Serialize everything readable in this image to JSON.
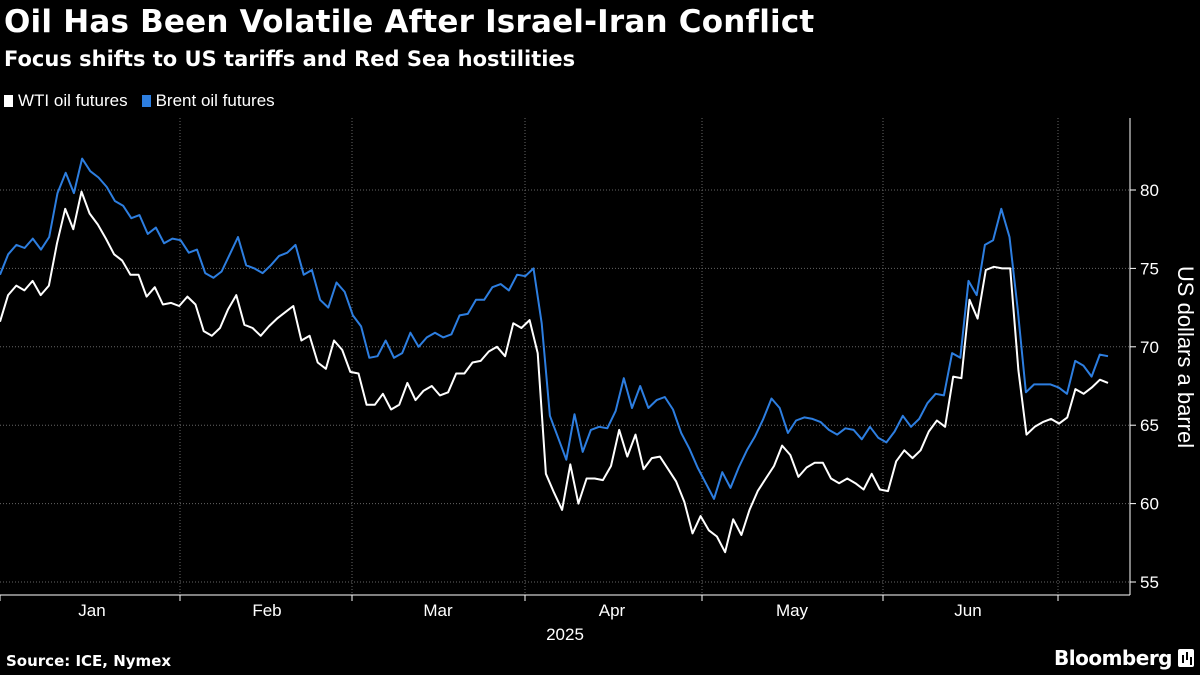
{
  "title": "Oil Has Been Volatile After Israel-Iran Conflict",
  "subtitle": "Focus shifts to US tariffs and Red Sea hostilities",
  "source": "Source: ICE, Nymex",
  "brand": "Bloomberg",
  "colors": {
    "background": "#000000",
    "wti": "#ffffff",
    "brent": "#2d7ee0",
    "grid": "#666666"
  },
  "chart_data": {
    "type": "line",
    "title": "Oil Has Been Volatile After Israel-Iran Conflict",
    "xlabel": "2025",
    "ylabel": "US dollars a barrel",
    "ylim": [
      55,
      84
    ],
    "yticks": [
      55,
      60,
      65,
      70,
      75,
      80
    ],
    "ytick_labels": [
      "55",
      "60",
      "65",
      "70",
      "75",
      "80"
    ],
    "month_labels": [
      "Jan",
      "Feb",
      "Mar",
      "Apr",
      "May",
      "Jun"
    ],
    "year_label": "2025",
    "legend_position": "top-left",
    "grid": true,
    "series": [
      {
        "name": "WTI oil futures",
        "color": "#ffffff",
        "values": [
          71.6,
          73.3,
          73.9,
          73.6,
          74.2,
          73.3,
          73.9,
          76.6,
          78.8,
          77.5,
          79.9,
          78.5,
          77.8,
          76.9,
          75.9,
          75.5,
          74.6,
          74.6,
          73.2,
          73.8,
          72.7,
          72.8,
          72.6,
          73.2,
          72.7,
          71.0,
          70.7,
          71.2,
          72.4,
          73.3,
          71.4,
          71.2,
          70.7,
          71.3,
          71.8,
          72.2,
          72.6,
          70.4,
          70.7,
          69.0,
          68.6,
          70.4,
          69.8,
          68.4,
          68.3,
          66.3,
          66.3,
          67.0,
          66.0,
          66.3,
          67.7,
          66.6,
          67.2,
          67.5,
          66.9,
          67.1,
          68.3,
          68.3,
          69.0,
          69.1,
          69.7,
          70.0,
          69.4,
          71.5,
          71.2,
          71.7,
          69.6,
          61.9,
          60.7,
          59.6,
          62.5,
          60.0,
          61.6,
          61.6,
          61.5,
          62.4,
          64.7,
          63.0,
          64.4,
          62.2,
          62.9,
          63.0,
          62.2,
          61.4,
          60.1,
          58.1,
          59.2,
          58.3,
          57.9,
          56.9,
          59.0,
          58.0,
          59.6,
          60.8,
          61.6,
          62.4,
          63.7,
          63.1,
          61.7,
          62.3,
          62.6,
          62.6,
          61.6,
          61.3,
          61.6,
          61.3,
          60.9,
          61.9,
          60.9,
          60.8,
          62.7,
          63.4,
          62.9,
          63.4,
          64.6,
          65.3,
          64.9,
          68.1,
          68.0,
          73.0,
          71.8,
          74.9,
          75.1,
          75.0,
          75.0,
          68.5,
          64.4,
          64.9,
          65.2,
          65.4,
          65.1,
          65.5,
          67.3,
          67.0,
          67.4,
          67.9,
          67.7
        ]
      },
      {
        "name": "Brent oil futures",
        "color": "#2d7ee0",
        "values": [
          74.6,
          75.9,
          76.5,
          76.3,
          76.9,
          76.2,
          77.0,
          79.8,
          81.1,
          79.8,
          82.0,
          81.2,
          80.8,
          80.2,
          79.3,
          79.0,
          78.2,
          78.4,
          77.2,
          77.6,
          76.6,
          76.9,
          76.8,
          76.0,
          76.2,
          74.7,
          74.4,
          74.8,
          75.9,
          77.0,
          75.2,
          75.0,
          74.7,
          75.2,
          75.8,
          76.0,
          76.5,
          74.6,
          74.9,
          73.0,
          72.5,
          74.1,
          73.5,
          72.0,
          71.3,
          69.3,
          69.4,
          70.4,
          69.3,
          69.6,
          70.9,
          70.0,
          70.6,
          70.9,
          70.6,
          70.8,
          72.0,
          72.1,
          73.0,
          73.0,
          73.8,
          74.0,
          73.6,
          74.6,
          74.5,
          75.0,
          71.5,
          65.6,
          64.2,
          62.8,
          65.7,
          63.3,
          64.7,
          64.9,
          64.8,
          65.9,
          68.0,
          66.1,
          67.5,
          66.1,
          66.6,
          66.8,
          66.0,
          64.5,
          63.5,
          62.3,
          61.3,
          60.3,
          62.0,
          61.0,
          62.3,
          63.4,
          64.3,
          65.4,
          66.7,
          66.1,
          64.5,
          65.3,
          65.5,
          65.4,
          65.2,
          64.7,
          64.4,
          64.8,
          64.7,
          64.1,
          64.9,
          64.2,
          63.9,
          64.6,
          65.6,
          64.9,
          65.4,
          66.4,
          67.0,
          66.9,
          69.6,
          69.3,
          74.2,
          73.3,
          76.5,
          76.8,
          78.8,
          77.0,
          72.4,
          67.1,
          67.6,
          67.6,
          67.6,
          67.4,
          67.0,
          69.1,
          68.8,
          68.1,
          69.5,
          69.4
        ]
      }
    ]
  }
}
